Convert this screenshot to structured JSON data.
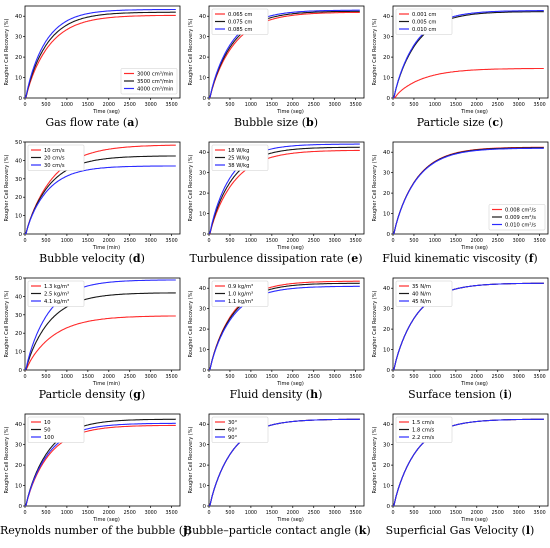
{
  "chart_data": [
    {
      "type": "line",
      "ylabel": "Rougher Cell Recovery (%)",
      "xlabel": "Time (seg)",
      "ylim": [
        0,
        45
      ],
      "xlim": [
        0,
        3700
      ],
      "yticks": [
        0,
        10,
        20,
        30,
        40
      ],
      "xticks": [
        0,
        500,
        1000,
        1500,
        2000,
        2500,
        3000,
        3500
      ],
      "legend": "bottom-right",
      "caption": "Gas flow rate",
      "caption_letter": "a",
      "series": [
        {
          "name": "3000 cm³/min",
          "color": "#ff2b2b",
          "final": 40.5,
          "rate": 0.00175
        },
        {
          "name": "3500 cm³/min",
          "color": "#1a1a1a",
          "final": 42.0,
          "rate": 0.0019
        },
        {
          "name": "4000 cm³/min",
          "color": "#2b2bff",
          "final": 43.3,
          "rate": 0.00205
        }
      ]
    },
    {
      "type": "line",
      "ylabel": "Rougher Cell Recovery (%)",
      "xlabel": "Time (seg)",
      "ylim": [
        0,
        45
      ],
      "xlim": [
        0,
        3700
      ],
      "yticks": [
        0,
        10,
        20,
        30,
        40
      ],
      "xticks": [
        0,
        500,
        1000,
        1500,
        2000,
        2500,
        3000,
        3500
      ],
      "legend": "top-left",
      "caption": "Bubble size",
      "caption_letter": "b",
      "series": [
        {
          "name": "0.065 cm",
          "color": "#ff2b2b",
          "final": 42.0,
          "rate": 0.00165
        },
        {
          "name": "0.075 cm",
          "color": "#1a1a1a",
          "final": 42.5,
          "rate": 0.00175
        },
        {
          "name": "0.085 cm",
          "color": "#2b2bff",
          "final": 43.0,
          "rate": 0.00185
        }
      ]
    },
    {
      "type": "line",
      "ylabel": "Rougher Cell Recovery (%)",
      "xlabel": "Time (seg)",
      "ylim": [
        0,
        45
      ],
      "xlim": [
        0,
        3700
      ],
      "yticks": [
        0,
        10,
        20,
        30,
        40
      ],
      "xticks": [
        0,
        500,
        1000,
        1500,
        2000,
        2500,
        3000,
        3500
      ],
      "legend": "top-left",
      "caption": "Particle size",
      "caption_letter": "c",
      "series": [
        {
          "name": "0.001 cm",
          "color": "#ff2b2b",
          "final": 14.5,
          "rate": 0.0015
        },
        {
          "name": "0.005 cm",
          "color": "#1a1a1a",
          "final": 42.3,
          "rate": 0.0018
        },
        {
          "name": "0.010 cm",
          "color": "#2b2bff",
          "final": 42.8,
          "rate": 0.00185
        }
      ]
    },
    {
      "type": "line",
      "ylabel": "Rougher Cell Recovery (%)",
      "xlabel": "Time (min)",
      "ylim": [
        0,
        50
      ],
      "xlim": [
        0,
        3700
      ],
      "yticks": [
        0,
        10,
        20,
        30,
        40,
        50
      ],
      "xticks": [
        0,
        500,
        1000,
        1500,
        2000,
        2500,
        3000,
        3500
      ],
      "legend": "top-left",
      "caption": "Bubble velocity",
      "caption_letter": "d",
      "series": [
        {
          "name": "10 cm/s",
          "color": "#ff2b2b",
          "final": 48.5,
          "rate": 0.0015
        },
        {
          "name": "20 cm/s",
          "color": "#1a1a1a",
          "final": 42.5,
          "rate": 0.0017
        },
        {
          "name": "30 cm/s",
          "color": "#2b2bff",
          "final": 37.0,
          "rate": 0.0019
        }
      ]
    },
    {
      "type": "line",
      "ylabel": "Rougher Cell Recovery (%)",
      "xlabel": "Time (seg)",
      "ylim": [
        0,
        45
      ],
      "xlim": [
        0,
        3700
      ],
      "yticks": [
        0,
        10,
        20,
        30,
        40
      ],
      "xticks": [
        0,
        500,
        1000,
        1500,
        2000,
        2500,
        3000,
        3500
      ],
      "legend": "top-left",
      "caption": "Turbulence dissipation rate",
      "caption_letter": "e",
      "series": [
        {
          "name": "18 W/kg",
          "color": "#ff2b2b",
          "final": 41.0,
          "rate": 0.00165
        },
        {
          "name": "25 W/kg",
          "color": "#1a1a1a",
          "final": 42.5,
          "rate": 0.0018
        },
        {
          "name": "38 W/kg",
          "color": "#2b2bff",
          "final": 44.0,
          "rate": 0.00195
        }
      ]
    },
    {
      "type": "line",
      "ylabel": "Rougher Cell Recovery (%)",
      "xlabel": "Time (seg)",
      "ylim": [
        0,
        45
      ],
      "xlim": [
        0,
        3700
      ],
      "yticks": [
        0,
        10,
        20,
        30,
        40
      ],
      "xticks": [
        0,
        500,
        1000,
        1500,
        2000,
        2500,
        3000,
        3500
      ],
      "legend": "bottom-right",
      "caption": "Fluid kinematic viscosity",
      "caption_letter": "f",
      "series": [
        {
          "name": "0.008 cm²/s",
          "color": "#ff2b2b",
          "final": 42.5,
          "rate": 0.0018
        },
        {
          "name": "0.009 cm²/s",
          "color": "#1a1a1a",
          "final": 42.3,
          "rate": 0.0018
        },
        {
          "name": "0.010 cm²/s",
          "color": "#2b2bff",
          "final": 42.0,
          "rate": 0.0018
        }
      ]
    },
    {
      "type": "line",
      "ylabel": "Rougher Cell Recovery (%)",
      "xlabel": "Time (min)",
      "ylim": [
        0,
        50
      ],
      "xlim": [
        0,
        3700
      ],
      "yticks": [
        0,
        10,
        20,
        30,
        40,
        50
      ],
      "xticks": [
        0,
        500,
        1000,
        1500,
        2000,
        2500,
        3000,
        3500
      ],
      "legend": "top-left",
      "caption": "Particle density",
      "caption_letter": "g",
      "series": [
        {
          "name": "1.3 kg/m³",
          "color": "#ff2b2b",
          "final": 29.5,
          "rate": 0.0015
        },
        {
          "name": "2.5 kg/m³",
          "color": "#1a1a1a",
          "final": 42.0,
          "rate": 0.0017
        },
        {
          "name": "4.1 kg/m³",
          "color": "#2b2bff",
          "final": 49.0,
          "rate": 0.0018
        }
      ]
    },
    {
      "type": "line",
      "ylabel": "Rougher Cell Recovery (%)",
      "xlabel": "Time (seg)",
      "ylim": [
        0,
        45
      ],
      "xlim": [
        0,
        3700
      ],
      "yticks": [
        0,
        10,
        20,
        30,
        40
      ],
      "xticks": [
        0,
        500,
        1000,
        1500,
        2000,
        2500,
        3000,
        3500
      ],
      "legend": "top-left",
      "caption": "Fluid density",
      "caption_letter": "h",
      "series": [
        {
          "name": "0.9 kg/m³",
          "color": "#ff2b2b",
          "final": 43.5,
          "rate": 0.0018
        },
        {
          "name": "1.0 kg/m³",
          "color": "#1a1a1a",
          "final": 42.5,
          "rate": 0.0018
        },
        {
          "name": "1.1 kg/m³",
          "color": "#2b2bff",
          "final": 41.0,
          "rate": 0.0018
        }
      ]
    },
    {
      "type": "line",
      "ylabel": "Rougher Cell Recovery (%)",
      "xlabel": "Time (seg)",
      "ylim": [
        0,
        45
      ],
      "xlim": [
        0,
        3700
      ],
      "yticks": [
        0,
        10,
        20,
        30,
        40
      ],
      "xticks": [
        0,
        500,
        1000,
        1500,
        2000,
        2500,
        3000,
        3500
      ],
      "legend": "top-left",
      "caption": "Surface tension",
      "caption_letter": "i",
      "series": [
        {
          "name": "35 N/m",
          "color": "#ff2b2b",
          "final": 42.5,
          "rate": 0.0018
        },
        {
          "name": "40 N/m",
          "color": "#1a1a1a",
          "final": 42.5,
          "rate": 0.0018
        },
        {
          "name": "45 N/m",
          "color": "#2b2bff",
          "final": 42.5,
          "rate": 0.0018
        }
      ]
    },
    {
      "type": "line",
      "ylabel": "Rougher Cell Recovery (%)",
      "xlabel": "Time (seg)",
      "ylim": [
        0,
        45
      ],
      "xlim": [
        0,
        3700
      ],
      "yticks": [
        0,
        10,
        20,
        30,
        40
      ],
      "xticks": [
        0,
        500,
        1000,
        1500,
        2000,
        2500,
        3000,
        3500
      ],
      "legend": "top-left",
      "caption": "Reynolds number of the bubble",
      "caption_letter": "j",
      "series": [
        {
          "name": "10",
          "color": "#ff2b2b",
          "final": 39.5,
          "rate": 0.00175
        },
        {
          "name": "50",
          "color": "#1a1a1a",
          "final": 42.5,
          "rate": 0.0018
        },
        {
          "name": "100",
          "color": "#2b2bff",
          "final": 40.5,
          "rate": 0.0018
        }
      ]
    },
    {
      "type": "line",
      "ylabel": "Rougher Cell Recovery (%)",
      "xlabel": "Time (seg)",
      "ylim": [
        0,
        45
      ],
      "xlim": [
        0,
        3700
      ],
      "yticks": [
        0,
        10,
        20,
        30,
        40
      ],
      "xticks": [
        0,
        500,
        1000,
        1500,
        2000,
        2500,
        3000,
        3500
      ],
      "legend": "top-left",
      "caption": "Bubble–particle contact angle",
      "caption_letter": "k",
      "series": [
        {
          "name": "30°",
          "color": "#ff2b2b",
          "final": 42.5,
          "rate": 0.0018
        },
        {
          "name": "60°",
          "color": "#1a1a1a",
          "final": 42.5,
          "rate": 0.0018
        },
        {
          "name": "90°",
          "color": "#2b2bff",
          "final": 42.5,
          "rate": 0.0018
        }
      ]
    },
    {
      "type": "line",
      "ylabel": "Rougher Cell Recovery (%)",
      "xlabel": "Time (seg)",
      "ylim": [
        0,
        45
      ],
      "xlim": [
        0,
        3700
      ],
      "yticks": [
        0,
        10,
        20,
        30,
        40
      ],
      "xticks": [
        0,
        500,
        1000,
        1500,
        2000,
        2500,
        3000,
        3500
      ],
      "legend": "top-left",
      "caption": "Superficial Gas Velocity",
      "caption_letter": "l",
      "series": [
        {
          "name": "1.5 cm/s",
          "color": "#ff2b2b",
          "final": 42.5,
          "rate": 0.0018
        },
        {
          "name": "1.8 cm/s",
          "color": "#1a1a1a",
          "final": 42.5,
          "rate": 0.0018
        },
        {
          "name": "2.2 cm/s",
          "color": "#2b2bff",
          "final": 42.5,
          "rate": 0.0018
        }
      ]
    }
  ]
}
